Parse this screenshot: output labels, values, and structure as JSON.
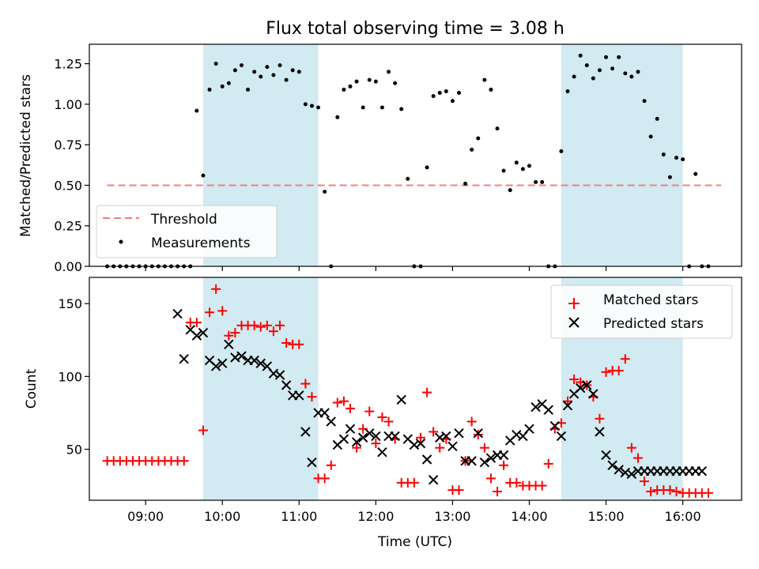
{
  "chart_data": [
    {
      "type": "scatter",
      "title": "Flux total observing time = 3.08 h",
      "xlabel": "",
      "ylabel": "Matched/Predicted stars",
      "ylim": [
        0,
        1.37
      ],
      "xlim": [
        "08:16",
        "16:46"
      ],
      "yticks": [
        "0.00",
        "0.25",
        "0.50",
        "0.75",
        "1.00",
        "1.25"
      ],
      "shaded_intervals": [
        [
          "09:45",
          "11:15"
        ],
        [
          "14:25",
          "16:00"
        ]
      ],
      "shade_color": "#add8e6",
      "legend_position": "lower-left",
      "series": [
        {
          "name": "Threshold",
          "kind": "dashed-line",
          "color": "#f08080",
          "x": [
            "08:30",
            "16:30"
          ],
          "y": [
            0.5,
            0.5
          ]
        },
        {
          "name": "Measurements",
          "kind": "dots",
          "color": "#000000",
          "x": [
            "08:30",
            "08:35",
            "08:40",
            "08:45",
            "08:50",
            "08:55",
            "09:00",
            "09:05",
            "09:10",
            "09:15",
            "09:20",
            "09:25",
            "09:30",
            "09:35",
            "09:40",
            "09:45",
            "09:50",
            "09:55",
            "10:00",
            "10:05",
            "10:10",
            "10:15",
            "10:20",
            "10:25",
            "10:30",
            "10:35",
            "10:40",
            "10:45",
            "10:50",
            "10:55",
            "11:00",
            "11:05",
            "11:10",
            "11:15",
            "11:20",
            "11:25",
            "11:30",
            "11:35",
            "11:40",
            "11:45",
            "11:50",
            "11:55",
            "12:00",
            "12:05",
            "12:10",
            "12:15",
            "12:20",
            "12:25",
            "12:30",
            "12:35",
            "12:40",
            "12:45",
            "12:50",
            "12:55",
            "13:00",
            "13:05",
            "13:10",
            "13:15",
            "13:20",
            "13:25",
            "13:30",
            "13:35",
            "13:40",
            "13:45",
            "13:50",
            "13:55",
            "14:00",
            "14:05",
            "14:10",
            "14:15",
            "14:20",
            "14:25",
            "14:30",
            "14:35",
            "14:40",
            "14:45",
            "14:50",
            "14:55",
            "15:00",
            "15:05",
            "15:10",
            "15:15",
            "15:20",
            "15:25",
            "15:30",
            "15:35",
            "15:40",
            "15:45",
            "15:50",
            "15:55",
            "16:00",
            "16:05",
            "16:10",
            "16:15",
            "16:20"
          ],
          "y": [
            0,
            0,
            0,
            0,
            0,
            0,
            0,
            0,
            0,
            0,
            0,
            0,
            0,
            0,
            0.96,
            0.56,
            1.09,
            1.25,
            1.11,
            1.13,
            1.21,
            1.24,
            1.09,
            1.2,
            1.17,
            1.23,
            1.18,
            1.24,
            1.15,
            1.21,
            1.2,
            1.0,
            0.99,
            0.98,
            0.46,
            0,
            0.92,
            1.09,
            1.11,
            1.14,
            0.98,
            1.15,
            1.14,
            0.98,
            1.2,
            1.13,
            0.97,
            0.54,
            0,
            0,
            0.61,
            1.05,
            1.07,
            1.08,
            1.02,
            1.07,
            0.51,
            0.72,
            0.79,
            1.15,
            1.09,
            0.85,
            0.59,
            0.47,
            0.64,
            0.6,
            0.62,
            0.52,
            0.52,
            0,
            0,
            0.71,
            1.08,
            1.17,
            1.3,
            1.24,
            1.16,
            1.21,
            1.29,
            1.22,
            1.29,
            1.19,
            1.17,
            1.2,
            1.02,
            0.8,
            0.91,
            0.69,
            0.55,
            0.67,
            0.66,
            0,
            0.57,
            0,
            0
          ]
        }
      ]
    },
    {
      "type": "scatter",
      "title": "",
      "xlabel": "Time (UTC)",
      "ylabel": "Count",
      "ylim": [
        15,
        168
      ],
      "xlim": [
        "08:16",
        "16:46"
      ],
      "xticks": [
        "09:00",
        "10:00",
        "11:00",
        "12:00",
        "13:00",
        "14:00",
        "15:00",
        "16:00"
      ],
      "yticks": [
        "50",
        "100",
        "150"
      ],
      "shaded_intervals": [
        [
          "09:45",
          "11:15"
        ],
        [
          "14:25",
          "16:00"
        ]
      ],
      "shade_color": "#add8e6",
      "legend_position": "top-right",
      "series": [
        {
          "name": "Matched stars",
          "marker": "plus",
          "color": "#ff0000",
          "x": [
            "08:30",
            "08:35",
            "08:40",
            "08:45",
            "08:50",
            "08:55",
            "09:00",
            "09:05",
            "09:10",
            "09:15",
            "09:20",
            "09:25",
            "09:30",
            "09:35",
            "09:40",
            "09:45",
            "09:50",
            "09:55",
            "10:00",
            "10:05",
            "10:10",
            "10:15",
            "10:20",
            "10:25",
            "10:30",
            "10:35",
            "10:40",
            "10:45",
            "10:50",
            "10:55",
            "11:00",
            "11:05",
            "11:10",
            "11:15",
            "11:20",
            "11:25",
            "11:30",
            "11:35",
            "11:40",
            "11:45",
            "11:50",
            "11:55",
            "12:00",
            "12:05",
            "12:10",
            "12:15",
            "12:20",
            "12:25",
            "12:30",
            "12:35",
            "12:40",
            "12:45",
            "12:50",
            "12:55",
            "13:00",
            "13:05",
            "13:10",
            "13:15",
            "13:20",
            "13:25",
            "13:30",
            "13:35",
            "13:40",
            "13:45",
            "13:50",
            "13:55",
            "14:00",
            "14:05",
            "14:10",
            "14:15",
            "14:20",
            "14:25",
            "14:30",
            "14:35",
            "14:40",
            "14:45",
            "14:50",
            "14:55",
            "15:00",
            "15:05",
            "15:10",
            "15:15",
            "15:20",
            "15:25",
            "15:30",
            "15:35",
            "15:40",
            "15:45",
            "15:50",
            "15:55",
            "16:00",
            "16:05",
            "16:10",
            "16:15",
            "16:20"
          ],
          "y": [
            42,
            42,
            42,
            42,
            42,
            42,
            42,
            42,
            42,
            42,
            42,
            42,
            42,
            137,
            137,
            63,
            144,
            160,
            145,
            128,
            130,
            135,
            135,
            135,
            134,
            135,
            131,
            135,
            123,
            122,
            122,
            95,
            86,
            30,
            30,
            39,
            82,
            83,
            78,
            51,
            64,
            76,
            54,
            72,
            69,
            57,
            27,
            27,
            27,
            58,
            89,
            62,
            51,
            57,
            22,
            22,
            42,
            69,
            60,
            51,
            30,
            21,
            39,
            27,
            27,
            25,
            25,
            25,
            25,
            40,
            64,
            68,
            83,
            98,
            96,
            94,
            86,
            71,
            103,
            104,
            104,
            112,
            51,
            44,
            28,
            21,
            22,
            22,
            22,
            21,
            20,
            20,
            20,
            20,
            20
          ]
        },
        {
          "name": "Predicted stars",
          "marker": "x",
          "color": "#000000",
          "x": [
            "09:25",
            "09:30",
            "09:35",
            "09:40",
            "09:45",
            "09:50",
            "09:55",
            "10:00",
            "10:05",
            "10:10",
            "10:15",
            "10:20",
            "10:25",
            "10:30",
            "10:35",
            "10:40",
            "10:45",
            "10:50",
            "10:55",
            "11:00",
            "11:05",
            "11:10",
            "11:15",
            "11:20",
            "11:25",
            "11:30",
            "11:35",
            "11:40",
            "11:45",
            "11:50",
            "11:55",
            "12:00",
            "12:05",
            "12:10",
            "12:15",
            "12:20",
            "12:25",
            "12:30",
            "12:35",
            "12:40",
            "12:45",
            "12:50",
            "12:55",
            "13:00",
            "13:05",
            "13:10",
            "13:15",
            "13:20",
            "13:25",
            "13:30",
            "13:35",
            "13:40",
            "13:45",
            "13:50",
            "13:55",
            "14:00",
            "14:05",
            "14:10",
            "14:15",
            "14:20",
            "14:25",
            "14:30",
            "14:35",
            "14:40",
            "14:45",
            "14:50",
            "14:55",
            "15:00",
            "15:05",
            "15:10",
            "15:15",
            "15:20",
            "15:25",
            "15:30",
            "15:35",
            "15:40",
            "15:45",
            "15:50",
            "15:55",
            "16:00",
            "16:05",
            "16:10",
            "16:15"
          ],
          "y": [
            143,
            112,
            132,
            128,
            130,
            111,
            107,
            109,
            122,
            113,
            114,
            111,
            111,
            109,
            107,
            102,
            101,
            94,
            87,
            87,
            62,
            41,
            75,
            75,
            69,
            53,
            57,
            64,
            55,
            58,
            61,
            59,
            48,
            59,
            59,
            84,
            57,
            53,
            54,
            43,
            29,
            58,
            59,
            52,
            61,
            42,
            42,
            61,
            41,
            44,
            46,
            46,
            56,
            60,
            59,
            64,
            79,
            81,
            77,
            66,
            59,
            80,
            88,
            92,
            94,
            88,
            62,
            46,
            39,
            36,
            34,
            33,
            35,
            35,
            35,
            35,
            35,
            35,
            35,
            35,
            35,
            35,
            35
          ]
        }
      ]
    }
  ]
}
